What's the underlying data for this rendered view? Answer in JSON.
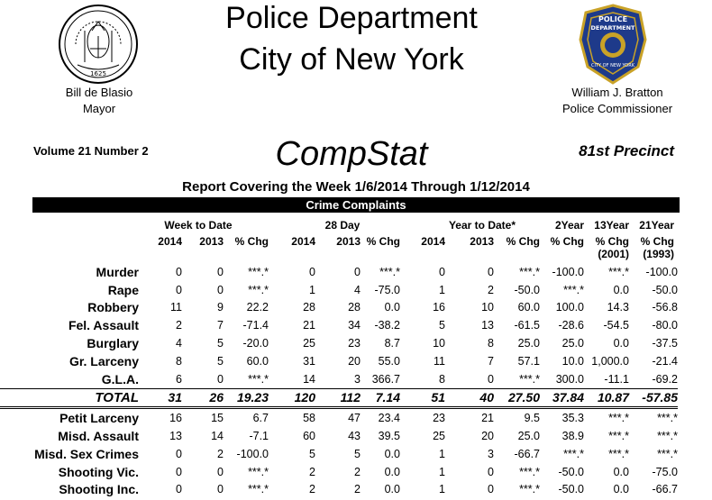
{
  "header": {
    "title_line1": "Police Department",
    "title_line2": "City of New York",
    "mayor_name": "Bill de Blasio",
    "mayor_title": "Mayor",
    "commissioner_name": "William J. Bratton",
    "commissioner_title": "Police Commissioner",
    "seal_text": "1625",
    "badge_text_top": "POLICE",
    "badge_text_mid": "DEPARTMENT",
    "badge_text_bottom": "CITY OF NEW YORK"
  },
  "report": {
    "volume": "Volume 21  Number  2",
    "brand": "CompStat",
    "precinct": "81st Precinct",
    "covering": "Report Covering the Week  1/6/2014  Through  1/12/2014",
    "section": "Crime Complaints"
  },
  "columns": {
    "week_to_date": "Week to Date",
    "day28": "28 Day",
    "year_to_date": "Year to Date*",
    "y2014": "2014",
    "y2013": "2013",
    "pct_chg": "% Chg",
    "two_year": "2Year",
    "thirteen_year": "13Year",
    "thirteen_year_base": "(2001)",
    "twentyone_year": "21Year",
    "twentyone_year_base": "(1993)"
  },
  "rows": [
    {
      "label": "Murder",
      "v": [
        "0",
        "0",
        "***.*",
        "0",
        "0",
        "***.*",
        "0",
        "0",
        "***.*",
        "-100.0",
        "***.*",
        "-100.0"
      ]
    },
    {
      "label": "Rape",
      "v": [
        "0",
        "0",
        "***.*",
        "1",
        "4",
        "-75.0",
        "1",
        "2",
        "-50.0",
        "***.*",
        "0.0",
        "-50.0"
      ]
    },
    {
      "label": "Robbery",
      "v": [
        "11",
        "9",
        "22.2",
        "28",
        "28",
        "0.0",
        "16",
        "10",
        "60.0",
        "100.0",
        "14.3",
        "-56.8"
      ]
    },
    {
      "label": "Fel. Assault",
      "v": [
        "2",
        "7",
        "-71.4",
        "21",
        "34",
        "-38.2",
        "5",
        "13",
        "-61.5",
        "-28.6",
        "-54.5",
        "-80.0"
      ]
    },
    {
      "label": "Burglary",
      "v": [
        "4",
        "5",
        "-20.0",
        "25",
        "23",
        "8.7",
        "10",
        "8",
        "25.0",
        "25.0",
        "0.0",
        "-37.5"
      ]
    },
    {
      "label": "Gr. Larceny",
      "v": [
        "8",
        "5",
        "60.0",
        "31",
        "20",
        "55.0",
        "11",
        "7",
        "57.1",
        "10.0",
        "1,000.0",
        "-21.4"
      ]
    },
    {
      "label": "G.L.A.",
      "v": [
        "6",
        "0",
        "***.*",
        "14",
        "3",
        "366.7",
        "8",
        "0",
        "***.*",
        "300.0",
        "-11.1",
        "-69.2"
      ]
    },
    {
      "label": "TOTAL",
      "total": true,
      "v": [
        "31",
        "26",
        "19.23",
        "120",
        "112",
        "7.14",
        "51",
        "40",
        "27.50",
        "37.84",
        "10.87",
        "-57.85"
      ]
    },
    {
      "label": "Petit Larceny",
      "v": [
        "16",
        "15",
        "6.7",
        "58",
        "47",
        "23.4",
        "23",
        "21",
        "9.5",
        "35.3",
        "***.*",
        "***.*"
      ]
    },
    {
      "label": "Misd. Assault",
      "v": [
        "13",
        "14",
        "-7.1",
        "60",
        "43",
        "39.5",
        "25",
        "20",
        "25.0",
        "38.9",
        "***.*",
        "***.*"
      ]
    },
    {
      "label": "Misd. Sex Crimes",
      "v": [
        "0",
        "2",
        "-100.0",
        "5",
        "5",
        "0.0",
        "1",
        "3",
        "-66.7",
        "***.*",
        "***.*",
        "***.*"
      ]
    },
    {
      "label": "Shooting Vic.",
      "v": [
        "0",
        "0",
        "***.*",
        "2",
        "2",
        "0.0",
        "1",
        "0",
        "***.*",
        "-50.0",
        "0.0",
        "-75.0"
      ]
    },
    {
      "label": "Shooting Inc.",
      "v": [
        "0",
        "0",
        "***.*",
        "2",
        "2",
        "0.0",
        "1",
        "0",
        "***.*",
        "-50.0",
        "0.0",
        "-66.7"
      ]
    }
  ]
}
